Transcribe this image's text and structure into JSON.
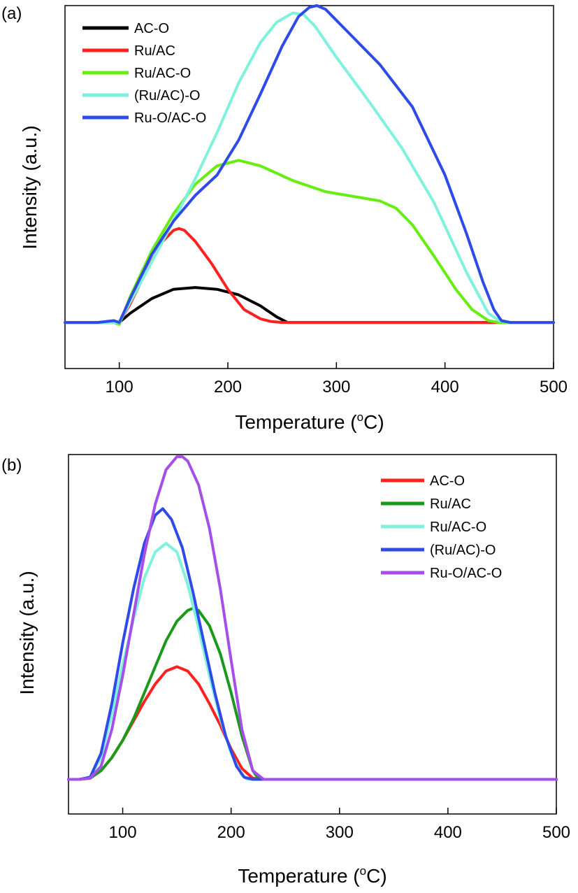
{
  "chart_data": [
    {
      "type": "line",
      "panel_label": "(a)",
      "xlabel": "Temperature (°C)",
      "xlabel_main": "Temperature (",
      "xlabel_sup": "o",
      "xlabel_end": "C)",
      "ylabel": "Intensity (a.u.)",
      "xlim": [
        50,
        500
      ],
      "ylim": [
        -0.25,
        1.72
      ],
      "xticks": [
        100,
        200,
        300,
        400,
        500
      ],
      "yticks_shown": false,
      "legend_position": "top-left",
      "series": [
        {
          "name": "AC-O",
          "color": "#000000",
          "x": [
            50,
            70,
            90,
            100,
            110,
            130,
            150,
            170,
            190,
            210,
            230,
            245,
            255,
            300,
            350,
            400,
            450,
            500
          ],
          "y": [
            0,
            0,
            0,
            0,
            0.05,
            0.13,
            0.18,
            0.19,
            0.18,
            0.15,
            0.09,
            0.03,
            0.0,
            0.0,
            0.0,
            0.0,
            0.0,
            0.0
          ]
        },
        {
          "name": "Ru/AC",
          "color": "#ff2020",
          "x": [
            50,
            70,
            90,
            100,
            110,
            125,
            140,
            150,
            155,
            160,
            170,
            185,
            200,
            215,
            230,
            240,
            250,
            300,
            400,
            500
          ],
          "y": [
            0,
            0,
            0,
            0.0,
            0.1,
            0.28,
            0.44,
            0.5,
            0.51,
            0.5,
            0.44,
            0.32,
            0.18,
            0.07,
            0.02,
            0.005,
            0.0,
            0.0,
            0.0,
            0.0
          ]
        },
        {
          "name": "Ru/AC-O",
          "color": "#66ee11",
          "x": [
            50,
            80,
            95,
            100,
            110,
            130,
            150,
            170,
            190,
            210,
            230,
            260,
            290,
            320,
            340,
            355,
            370,
            390,
            410,
            425,
            440,
            450,
            460,
            500
          ],
          "y": [
            0,
            0,
            0,
            -0.01,
            0.14,
            0.39,
            0.59,
            0.75,
            0.85,
            0.88,
            0.85,
            0.77,
            0.71,
            0.68,
            0.66,
            0.62,
            0.53,
            0.36,
            0.18,
            0.07,
            0.01,
            0.0,
            0.0,
            0.0
          ]
        },
        {
          "name": "(Ru/AC)-O",
          "color": "#7ff2dd",
          "x": [
            50,
            80,
            95,
            100,
            110,
            130,
            150,
            170,
            190,
            210,
            230,
            245,
            260,
            270,
            280,
            300,
            330,
            360,
            390,
            420,
            440,
            450,
            460,
            500
          ],
          "y": [
            0,
            0,
            0,
            0.0,
            0.11,
            0.33,
            0.55,
            0.78,
            1.03,
            1.3,
            1.52,
            1.63,
            1.68,
            1.67,
            1.61,
            1.44,
            1.2,
            0.95,
            0.65,
            0.27,
            0.05,
            0.01,
            0.0,
            0.0
          ]
        },
        {
          "name": "Ru-O/AC-O",
          "color": "#2e4be8",
          "x": [
            50,
            80,
            95,
            100,
            110,
            130,
            150,
            170,
            190,
            210,
            230,
            250,
            265,
            275,
            282,
            290,
            310,
            340,
            370,
            400,
            420,
            435,
            445,
            452,
            460,
            500
          ],
          "y": [
            0,
            0,
            0.01,
            0.0,
            0.13,
            0.37,
            0.55,
            0.69,
            0.8,
            0.99,
            1.24,
            1.5,
            1.66,
            1.71,
            1.72,
            1.7,
            1.58,
            1.4,
            1.17,
            0.8,
            0.48,
            0.22,
            0.07,
            0.01,
            0.0,
            0.0
          ]
        }
      ]
    },
    {
      "type": "line",
      "panel_label": "(b)",
      "xlabel": "Temperature (°C)",
      "xlabel_main": "Temperature (",
      "xlabel_sup": "o",
      "xlabel_end": "C)",
      "ylabel": "Intensity (a.u.)",
      "xlim": [
        50,
        500
      ],
      "ylim": [
        -0.16,
        1.5
      ],
      "xticks": [
        100,
        200,
        300,
        400,
        500
      ],
      "yticks_shown": false,
      "legend_position": "top-right",
      "series": [
        {
          "name": "AC-O",
          "color": "#ff2020",
          "x": [
            50,
            60,
            70,
            80,
            90,
            100,
            110,
            120,
            130,
            140,
            150,
            160,
            170,
            180,
            190,
            200,
            210,
            220,
            230,
            300,
            400,
            500
          ],
          "y": [
            0,
            0,
            0.005,
            0.04,
            0.1,
            0.18,
            0.27,
            0.36,
            0.44,
            0.5,
            0.52,
            0.5,
            0.44,
            0.35,
            0.25,
            0.14,
            0.05,
            0.005,
            0.0,
            0.0,
            0.0,
            0.0
          ]
        },
        {
          "name": "Ru/AC",
          "color": "#1a9a1a",
          "x": [
            50,
            60,
            70,
            80,
            90,
            100,
            110,
            120,
            130,
            140,
            150,
            160,
            165,
            170,
            180,
            190,
            200,
            210,
            220,
            225,
            230,
            300,
            400,
            500
          ],
          "y": [
            0,
            0,
            0.005,
            0.04,
            0.1,
            0.18,
            0.28,
            0.4,
            0.52,
            0.64,
            0.73,
            0.78,
            0.79,
            0.78,
            0.71,
            0.58,
            0.4,
            0.2,
            0.04,
            0.005,
            0.0,
            0.0,
            0.0,
            0.0
          ]
        },
        {
          "name": "Ru/AC-O",
          "color": "#7ff2dd",
          "x": [
            50,
            60,
            70,
            80,
            90,
            100,
            110,
            120,
            130,
            140,
            150,
            160,
            170,
            180,
            190,
            200,
            210,
            215,
            230,
            300,
            400,
            500
          ],
          "y": [
            0,
            0,
            0.01,
            0.1,
            0.3,
            0.53,
            0.74,
            0.93,
            1.05,
            1.09,
            1.05,
            0.9,
            0.7,
            0.48,
            0.28,
            0.12,
            0.02,
            0.0,
            0.0,
            0.0,
            0.0,
            0.0
          ]
        },
        {
          "name": "(Ru/AC)-O",
          "color": "#2e4be8",
          "x": [
            50,
            60,
            70,
            80,
            90,
            100,
            110,
            120,
            130,
            137,
            145,
            155,
            165,
            175,
            185,
            195,
            205,
            212,
            220,
            230,
            300,
            400,
            500
          ],
          "y": [
            0,
            0,
            0.01,
            0.12,
            0.35,
            0.63,
            0.88,
            1.09,
            1.22,
            1.25,
            1.2,
            1.07,
            0.86,
            0.63,
            0.4,
            0.2,
            0.06,
            0.01,
            0.0,
            0.0,
            0.0,
            0.0,
            0.0
          ]
        },
        {
          "name": "Ru-O/AC-O",
          "color": "#a54fe8",
          "x": [
            50,
            60,
            70,
            80,
            90,
            100,
            110,
            120,
            130,
            140,
            150,
            155,
            160,
            170,
            180,
            190,
            200,
            210,
            220,
            230,
            300,
            400,
            500
          ],
          "y": [
            0,
            0,
            0.005,
            0.06,
            0.23,
            0.48,
            0.76,
            1.04,
            1.27,
            1.43,
            1.49,
            1.49,
            1.47,
            1.36,
            1.16,
            0.88,
            0.55,
            0.23,
            0.04,
            0.0,
            0.0,
            0.0,
            0.0
          ]
        }
      ]
    }
  ]
}
